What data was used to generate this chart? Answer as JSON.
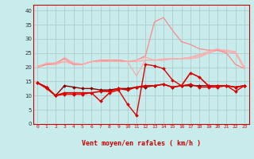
{
  "x": [
    0,
    1,
    2,
    3,
    4,
    5,
    6,
    7,
    8,
    9,
    10,
    11,
    12,
    13,
    14,
    15,
    16,
    17,
    18,
    19,
    20,
    21,
    22,
    23
  ],
  "background_color": "#c8ecec",
  "grid_color": "#b0cccc",
  "xlabel": "Vent moyen/en rafales ( km/h )",
  "xlabel_color": "#cc0000",
  "ylim": [
    0,
    42
  ],
  "xlim": [
    -0.5,
    23.5
  ],
  "yticks": [
    0,
    5,
    10,
    15,
    20,
    25,
    30,
    35,
    40
  ],
  "line_rafales1": {
    "y": [
      20.5,
      21.0,
      21.0,
      23.5,
      21.5,
      21.0,
      22.0,
      22.0,
      22.5,
      22.5,
      22.0,
      22.0,
      22.5,
      22.5,
      23.0,
      23.0,
      23.0,
      23.5,
      24.0,
      25.0,
      26.0,
      26.0,
      25.5,
      20.0
    ],
    "color": "#ffaaaa",
    "lw": 0.9
  },
  "line_rafales2": {
    "y": [
      20.0,
      21.0,
      21.0,
      22.0,
      21.0,
      21.0,
      22.0,
      22.0,
      22.5,
      22.5,
      22.0,
      17.0,
      22.5,
      22.5,
      22.5,
      23.0,
      23.0,
      23.0,
      23.5,
      25.0,
      26.0,
      25.5,
      25.0,
      19.5
    ],
    "color": "#ffaaaa",
    "lw": 0.9
  },
  "line_rafales3": {
    "y": [
      20.0,
      21.0,
      21.5,
      23.0,
      21.0,
      21.0,
      22.0,
      22.5,
      22.5,
      22.5,
      22.0,
      22.5,
      24.0,
      36.0,
      37.5,
      33.0,
      29.0,
      28.0,
      26.5,
      26.0,
      26.0,
      25.0,
      21.0,
      19.5
    ],
    "color": "#ff8888",
    "lw": 0.9
  },
  "line_rafales4": {
    "y": [
      20.0,
      21.5,
      21.5,
      22.0,
      21.5,
      21.0,
      22.0,
      22.0,
      22.0,
      22.0,
      22.0,
      22.5,
      23.5,
      22.5,
      22.5,
      23.0,
      23.0,
      23.5,
      24.5,
      25.5,
      26.5,
      25.5,
      25.0,
      19.5
    ],
    "color": "#ffaaaa",
    "lw": 0.9
  },
  "line_moyen1": {
    "y": [
      14.5,
      12.5,
      10.0,
      10.5,
      10.5,
      10.5,
      11.0,
      8.0,
      11.0,
      12.0,
      7.0,
      3.0,
      21.0,
      20.5,
      19.5,
      15.5,
      13.5,
      14.0,
      13.0,
      13.0,
      13.0,
      13.5,
      11.5,
      13.5
    ],
    "color": "#dd0000",
    "lw": 1.0,
    "marker": "D",
    "ms": 2.0
  },
  "line_moyen2": {
    "y": [
      14.5,
      13.0,
      10.0,
      13.5,
      13.0,
      12.5,
      12.5,
      12.0,
      12.0,
      12.5,
      12.5,
      13.0,
      13.0,
      13.5,
      14.0,
      13.0,
      13.5,
      13.5,
      13.5,
      13.5,
      13.5,
      13.5,
      13.0,
      13.5
    ],
    "color": "#880000",
    "lw": 1.0,
    "marker": "D",
    "ms": 2.0
  },
  "line_moyen3": {
    "y": [
      14.5,
      13.0,
      10.0,
      11.0,
      11.0,
      11.0,
      11.0,
      11.5,
      11.5,
      12.5,
      12.0,
      13.0,
      13.5,
      13.5,
      14.0,
      13.0,
      13.5,
      18.0,
      16.5,
      13.5,
      13.5,
      13.5,
      13.0,
      13.5
    ],
    "color": "#dd0000",
    "lw": 1.2,
    "marker": "D",
    "ms": 2.0
  },
  "wind_arrows": [
    "↗",
    "↗",
    "↗",
    "↗",
    "↗",
    "↗",
    "↗",
    "↗",
    "↗",
    "↗",
    "↙",
    "↙",
    "↓",
    "↓",
    "↓",
    "↗",
    "↗",
    "↗",
    "↗",
    "↗",
    "↗",
    "↗",
    "↗",
    "↗"
  ],
  "arrow_color": "#cc0000"
}
